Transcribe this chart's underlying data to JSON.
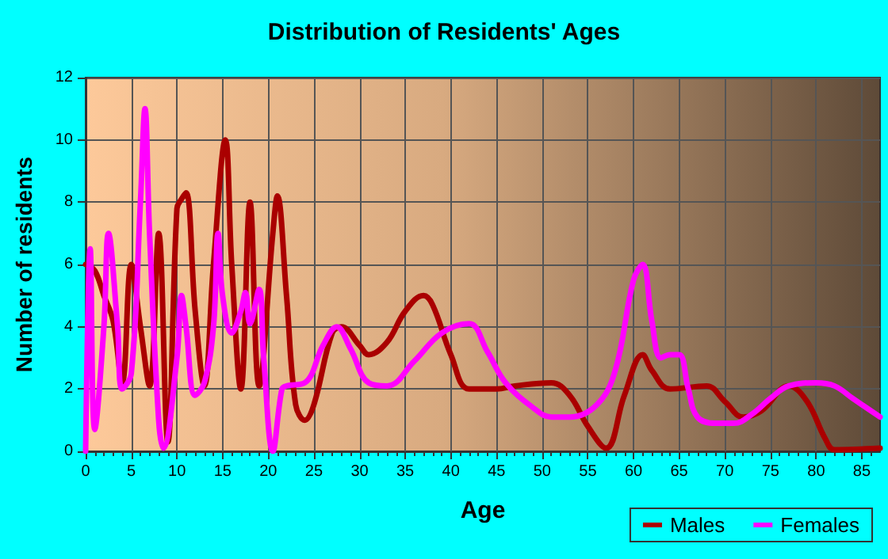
{
  "chart_data": {
    "type": "line",
    "title": "Distribution of Residents' Ages",
    "xlabel": "Age",
    "ylabel": "Number of residents",
    "xlim": [
      0,
      87
    ],
    "xticks": [
      0,
      5,
      10,
      15,
      20,
      25,
      30,
      35,
      40,
      45,
      50,
      55,
      60,
      65,
      70,
      75,
      80,
      85
    ],
    "ylim": [
      0,
      12
    ],
    "yticks": [
      0,
      2,
      4,
      6,
      8,
      10,
      12
    ],
    "grid": true,
    "legend": "bottom right",
    "marker": "none",
    "line_style": "solid",
    "series": [
      {
        "name": "Males",
        "color": "#aa0000",
        "x": [
          0,
          1,
          2,
          3,
          4,
          5,
          6,
          7,
          8,
          9,
          10,
          10.5,
          11,
          12,
          13,
          14,
          15.3,
          16,
          17,
          18,
          19,
          20.5,
          21,
          22,
          23,
          24,
          25,
          27,
          28,
          30,
          31,
          33,
          35,
          37,
          38,
          40,
          42,
          45,
          47,
          51,
          53,
          55,
          57,
          59,
          61,
          62,
          64,
          68,
          70,
          72,
          74,
          77,
          79,
          81,
          82,
          87
        ],
        "values": [
          6.0,
          5.8,
          5,
          4.2,
          2.2,
          6.0,
          4,
          2.1,
          7.0,
          0.3,
          7.8,
          8.1,
          8.3,
          4.5,
          2.1,
          6,
          10,
          6,
          2,
          8,
          2.1,
          7,
          8.2,
          5,
          1.5,
          1.0,
          1.5,
          3.8,
          4.0,
          3.4,
          3.1,
          3.5,
          4.5,
          5,
          4.7,
          3.1,
          2.0,
          2.0,
          2.1,
          2.2,
          1.8,
          0.8,
          0.1,
          1.8,
          3.1,
          2.6,
          2.0,
          2.1,
          1.6,
          1.1,
          1.3,
          2.1,
          1.6,
          0.4,
          0.05,
          0.1
        ]
      },
      {
        "name": "Females",
        "color": "#ff00ff",
        "x": [
          0,
          0.5,
          1,
          2,
          2.5,
          3.5,
          4,
          5,
          6,
          6.5,
          7,
          8,
          8.5,
          10,
          10.5,
          11,
          12,
          13,
          14,
          14.5,
          15,
          16,
          17,
          17.5,
          18,
          19,
          19.5,
          20.5,
          21.5,
          22,
          24,
          26,
          27.5,
          29,
          31,
          33,
          36,
          39,
          42,
          44,
          46,
          49,
          51,
          53,
          56,
          58,
          60,
          61,
          62,
          63,
          64,
          65,
          66,
          67,
          69,
          71,
          73,
          75,
          77,
          80,
          82,
          84,
          87
        ],
        "values": [
          0,
          6.5,
          0.7,
          4,
          7.0,
          4,
          2,
          2.5,
          8,
          11,
          7,
          1,
          0.1,
          3,
          5,
          4,
          1.8,
          2.2,
          4,
          7.0,
          5,
          3.8,
          4.5,
          5.1,
          4.1,
          5.2,
          3,
          0,
          2.0,
          2.1,
          2.2,
          3.4,
          4.0,
          3.3,
          2.2,
          2.1,
          2.9,
          3.8,
          4.1,
          3.2,
          2.2,
          1.4,
          1.1,
          1.1,
          1.5,
          2.6,
          5.5,
          6.0,
          4.2,
          3.0,
          3.1,
          3.1,
          2.0,
          1.1,
          0.9,
          0.9,
          1.2,
          1.7,
          2.1,
          2.2,
          2.1,
          1.7,
          1.1
        ]
      }
    ]
  }
}
